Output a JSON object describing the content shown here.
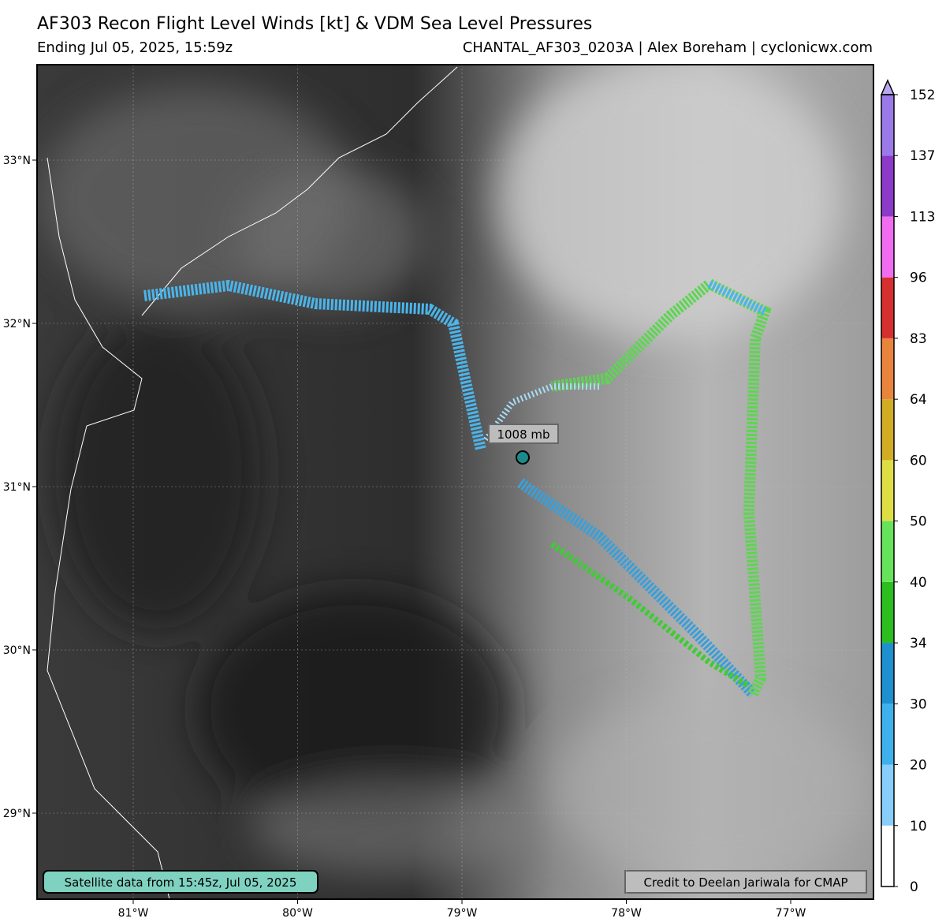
{
  "header": {
    "title": "AF303 Recon Flight Level Winds [kt] & VDM Sea Level Pressures",
    "subtitle": "Ending Jul 05, 2025, 15:59z",
    "source": "CHANTAL_AF303_0203A | Alex Boreham | cyclonicwx.com"
  },
  "map": {
    "lat_ticks": [
      {
        "value": 33,
        "label": "33°N"
      },
      {
        "value": 32,
        "label": "32°N"
      },
      {
        "value": 31,
        "label": "31°N"
      },
      {
        "value": 30,
        "label": "30°N"
      },
      {
        "value": 29,
        "label": "29°N"
      }
    ],
    "lon_ticks": [
      {
        "value": -81,
        "label": "81°W"
      },
      {
        "value": -80,
        "label": "80°W"
      },
      {
        "value": -79,
        "label": "79°W"
      },
      {
        "value": -78,
        "label": "78°W"
      },
      {
        "value": -77,
        "label": "77°W"
      }
    ],
    "pressure_label": "1008 mb",
    "satellite_note": "Satellite data from 15:45z, Jul 05, 2025",
    "credit": "Credit to Deelan Jariwala for CMAP"
  },
  "colorbar": {
    "ticks": [
      0,
      10,
      20,
      30,
      34,
      40,
      50,
      60,
      64,
      83,
      96,
      113,
      137,
      152
    ],
    "colors": [
      "#ffffff",
      "#87cefa",
      "#3eb1ec",
      "#1e8fcf",
      "#2cbd1f",
      "#66e35b",
      "#dede44",
      "#d1ac24",
      "#e8843c",
      "#d62f2f",
      "#f06cf0",
      "#8c3ac8",
      "#9a7ae8"
    ],
    "extend_color": "#b8a8f0"
  }
}
